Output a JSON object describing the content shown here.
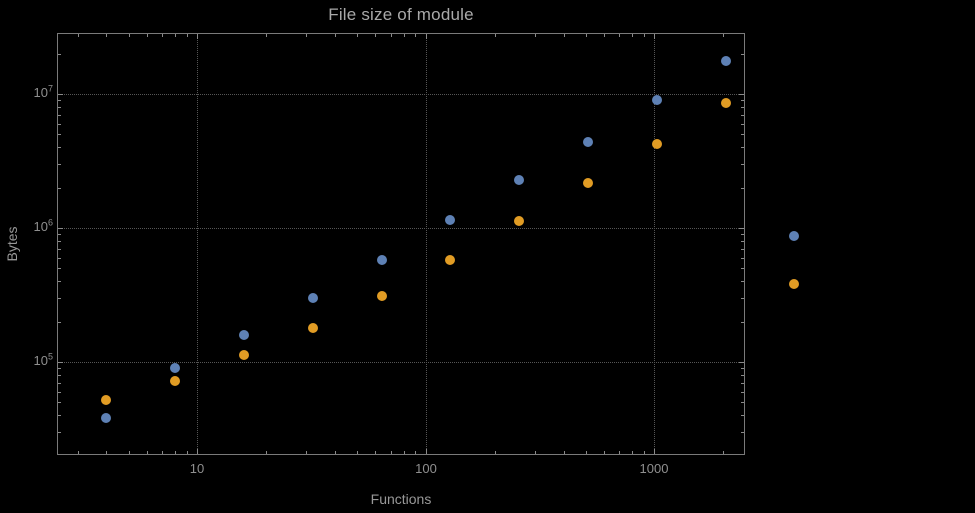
{
  "chart_data": {
    "type": "scatter",
    "title": "File size of module",
    "xlabel": "Functions",
    "ylabel": "Bytes",
    "x_scale": "log",
    "y_scale": "log",
    "grid": "dotted",
    "legend": "none",
    "x": [
      4,
      8,
      16,
      32,
      64,
      128,
      256,
      512,
      1024,
      2048,
      4096
    ],
    "series": [
      {
        "name": "series-blue",
        "color": "#5E81B5",
        "values": [
          38000,
          90000,
          160000,
          300000,
          580000,
          1150000,
          2300000,
          4400000,
          9000000,
          17500000,
          870000
        ]
      },
      {
        "name": "series-orange",
        "color": "#E19C24",
        "values": [
          52000,
          72000,
          112000,
          178000,
          310000,
          580000,
          1120000,
          2150000,
          4200000,
          8600000,
          380000
        ]
      }
    ],
    "xlim": [
      2.43,
      2490
    ],
    "ylim": [
      20200,
      28530000
    ],
    "x_ticks": [
      {
        "value": 10,
        "label": "10"
      },
      {
        "value": 100,
        "label": "100"
      },
      {
        "value": 1000,
        "label": "1000"
      }
    ],
    "y_ticks": [
      {
        "value": 100000,
        "label": "10^5"
      },
      {
        "value": 1000000,
        "label": "10^6"
      },
      {
        "value": 10000000,
        "label": "10^7"
      }
    ],
    "colors": {
      "background": "#000000",
      "frame": "#7a7a7a",
      "grid": "#565656",
      "text": "#8f8f8f"
    }
  }
}
